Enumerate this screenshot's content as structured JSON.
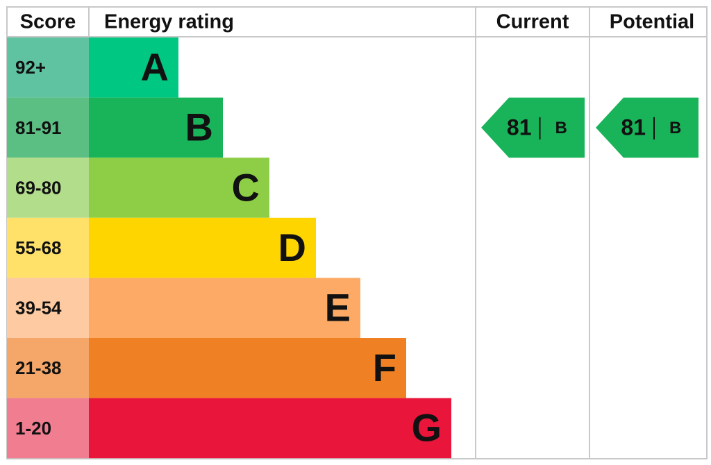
{
  "header": {
    "score": "Score",
    "energy_rating": "Energy rating",
    "current": "Current",
    "potential": "Potential"
  },
  "bands": [
    {
      "score": "92+",
      "letter": "A",
      "color": "#00c781",
      "score_color": "#5fc3a2"
    },
    {
      "score": "81-91",
      "letter": "B",
      "color": "#19b459",
      "score_color": "#5bbf83"
    },
    {
      "score": "69-80",
      "letter": "C",
      "color": "#8dce46",
      "score_color": "#b2dd8b"
    },
    {
      "score": "55-68",
      "letter": "D",
      "color": "#ffd500",
      "score_color": "#ffe169"
    },
    {
      "score": "39-54",
      "letter": "E",
      "color": "#fcaa65",
      "score_color": "#fdcaa1"
    },
    {
      "score": "21-38",
      "letter": "F",
      "color": "#ef8023",
      "score_color": "#f4a768"
    },
    {
      "score": "1-20",
      "letter": "G",
      "color": "#e9153b",
      "score_color": "#f07d90"
    }
  ],
  "current": {
    "value": 81,
    "letter": "B",
    "color": "#19b459"
  },
  "potential": {
    "value": 81,
    "letter": "B",
    "color": "#19b459"
  }
}
